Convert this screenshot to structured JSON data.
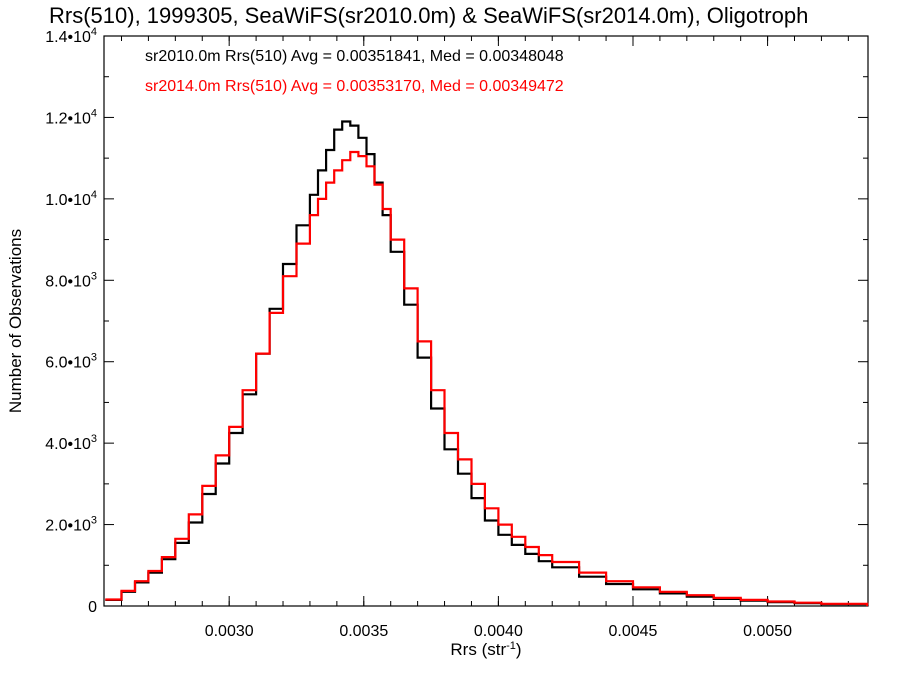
{
  "chart_data": {
    "type": "line",
    "title": "Rrs(510), 1999305, SeaWiFS(sr2010.0m) & SeaWiFS(sr2014.0m), Oligotroph",
    "xlabel_main": "Rrs (str",
    "xlabel_sup": "-1",
    "xlabel_end": ")",
    "ylabel": "Number of Observations",
    "xlim": [
      0.002535,
      0.005373
    ],
    "ylim": [
      0,
      14000
    ],
    "x_ticks": [
      {
        "value": 0.003,
        "label": "0.0030"
      },
      {
        "value": 0.0035,
        "label": "0.0035"
      },
      {
        "value": 0.004,
        "label": "0.0040"
      },
      {
        "value": 0.0045,
        "label": "0.0045"
      },
      {
        "value": 0.005,
        "label": "0.0050"
      }
    ],
    "y_ticks": [
      {
        "value": 0,
        "label": "0",
        "sup": ""
      },
      {
        "value": 2000,
        "label": "2.0•10",
        "sup": "3"
      },
      {
        "value": 4000,
        "label": "4.0•10",
        "sup": "3"
      },
      {
        "value": 6000,
        "label": "6.0•10",
        "sup": "3"
      },
      {
        "value": 8000,
        "label": "8.0•10",
        "sup": "3"
      },
      {
        "value": 10000,
        "label": "1.0•10",
        "sup": "4"
      },
      {
        "value": 12000,
        "label": "1.2•10",
        "sup": "4"
      },
      {
        "value": 14000,
        "label": "1.4•10",
        "sup": "4"
      }
    ],
    "legend_placement": "top-left",
    "legend": [
      {
        "text": "sr2010.0m Rrs(510) Avg = 0.00351841, Med = 0.00348048",
        "color": "#000000"
      },
      {
        "text": "sr2014.0m Rrs(510) Avg = 0.00353170, Med = 0.00349472",
        "color": "#ff0000"
      }
    ],
    "grid": false,
    "series": [
      {
        "color": "#000000",
        "x": [
          0.00254,
          0.0026,
          0.00265,
          0.0027,
          0.00275,
          0.0028,
          0.00285,
          0.0029,
          0.00295,
          0.003,
          0.00305,
          0.0031,
          0.00315,
          0.0032,
          0.00325,
          0.0033,
          0.00333,
          0.00336,
          0.00339,
          0.00342,
          0.00345,
          0.00348,
          0.00351,
          0.00354,
          0.00357,
          0.0036,
          0.00365,
          0.0037,
          0.00375,
          0.0038,
          0.00385,
          0.0039,
          0.00395,
          0.004,
          0.00405,
          0.0041,
          0.00415,
          0.0042,
          0.0043,
          0.0044,
          0.0045,
          0.0046,
          0.0047,
          0.0048,
          0.0049,
          0.005,
          0.0051,
          0.0052,
          0.00537
        ],
        "y": [
          150,
          350,
          580,
          820,
          1150,
          1550,
          2050,
          2750,
          3500,
          4250,
          5200,
          6200,
          7300,
          8400,
          9350,
          10100,
          10700,
          11200,
          11700,
          11900,
          11800,
          11500,
          11100,
          10400,
          9600,
          8700,
          7400,
          6100,
          4850,
          3850,
          3250,
          2650,
          2100,
          1750,
          1500,
          1280,
          1100,
          950,
          720,
          540,
          410,
          310,
          230,
          175,
          130,
          95,
          70,
          45,
          20
        ]
      },
      {
        "color": "#ff0000",
        "x": [
          0.00254,
          0.0026,
          0.00265,
          0.0027,
          0.00275,
          0.0028,
          0.00285,
          0.0029,
          0.00295,
          0.003,
          0.00305,
          0.0031,
          0.00315,
          0.0032,
          0.00325,
          0.0033,
          0.00333,
          0.00336,
          0.00339,
          0.00342,
          0.00345,
          0.00348,
          0.00351,
          0.00354,
          0.00357,
          0.0036,
          0.00365,
          0.0037,
          0.00375,
          0.0038,
          0.00385,
          0.0039,
          0.00395,
          0.004,
          0.00405,
          0.0041,
          0.00415,
          0.0042,
          0.0043,
          0.0044,
          0.0045,
          0.0046,
          0.0047,
          0.0048,
          0.0049,
          0.005,
          0.0051,
          0.0052,
          0.00537
        ],
        "y": [
          160,
          370,
          610,
          860,
          1200,
          1650,
          2250,
          2950,
          3700,
          4400,
          5300,
          6200,
          7200,
          8100,
          8900,
          9600,
          10000,
          10400,
          10700,
          10950,
          11150,
          11050,
          10800,
          10350,
          9750,
          9000,
          7800,
          6500,
          5300,
          4250,
          3600,
          3000,
          2400,
          2000,
          1700,
          1450,
          1250,
          1080,
          820,
          610,
          460,
          350,
          265,
          200,
          150,
          110,
          80,
          55,
          25
        ]
      }
    ]
  }
}
